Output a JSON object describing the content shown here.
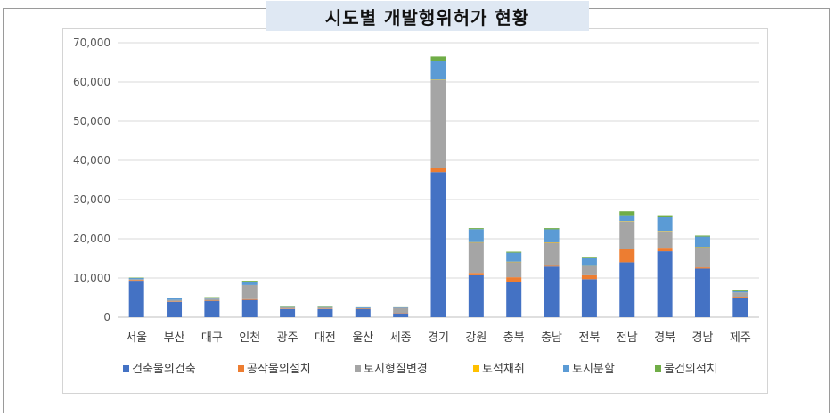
{
  "chart_data": {
    "type": "bar",
    "stacked": true,
    "title": "시도별 개발행위허가 현황",
    "categories": [
      "서울",
      "부산",
      "대구",
      "인천",
      "광주",
      "대전",
      "울산",
      "세종",
      "경기",
      "강원",
      "충북",
      "충남",
      "전북",
      "전남",
      "경북",
      "경남",
      "제주"
    ],
    "ylim": [
      0,
      70000
    ],
    "yticks": [
      "0",
      "10,000",
      "20,000",
      "30,000",
      "40,000",
      "50,000",
      "60,000",
      "70,000"
    ],
    "grid": true,
    "legend_position": "bottom",
    "series": [
      {
        "name": "건축물의건축",
        "color": "#4472c4",
        "values": [
          9300,
          3900,
          4100,
          4400,
          2100,
          2100,
          2100,
          1000,
          37000,
          10700,
          9000,
          12900,
          9700,
          14000,
          16800,
          12400,
          5000
        ]
      },
      {
        "name": "공작물의설치",
        "color": "#ed7d31",
        "values": [
          200,
          100,
          100,
          200,
          100,
          100,
          50,
          100,
          1000,
          600,
          1200,
          400,
          1000,
          3300,
          900,
          300,
          200
        ]
      },
      {
        "name": "토지형질변경",
        "color": "#a5a5a5",
        "values": [
          200,
          400,
          500,
          3600,
          300,
          300,
          150,
          1300,
          22500,
          7800,
          3900,
          5700,
          2500,
          7100,
          4200,
          5100,
          1100
        ]
      },
      {
        "name": "토석채취",
        "color": "#ffc000",
        "values": [
          0,
          0,
          0,
          0,
          0,
          0,
          0,
          0,
          100,
          50,
          50,
          100,
          50,
          100,
          100,
          50,
          0
        ]
      },
      {
        "name": "토지분할",
        "color": "#5b9bd5",
        "values": [
          300,
          500,
          300,
          900,
          300,
          300,
          400,
          300,
          4800,
          3300,
          2300,
          3300,
          1800,
          1500,
          3600,
          2700,
          300
        ]
      },
      {
        "name": "물건의적치",
        "color": "#70ad47",
        "values": [
          100,
          100,
          100,
          200,
          100,
          100,
          50,
          50,
          1100,
          250,
          250,
          300,
          350,
          1000,
          400,
          250,
          200
        ]
      }
    ]
  }
}
